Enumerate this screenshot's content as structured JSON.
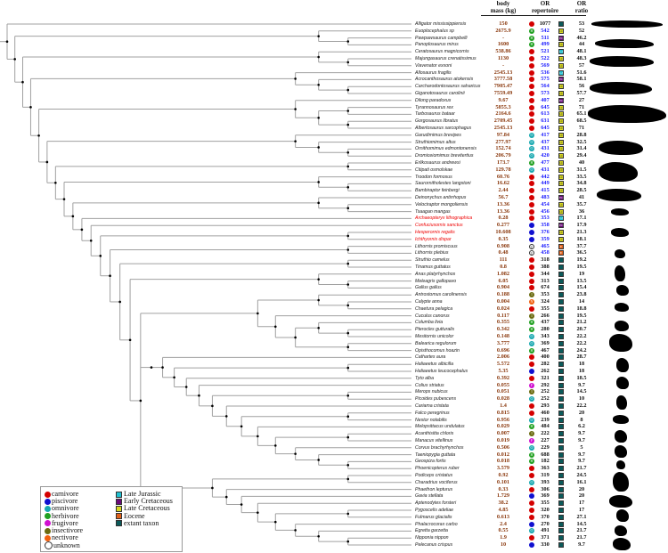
{
  "headers": {
    "body_mass": [
      "body",
      "mass (kg)"
    ],
    "or_repertoire": [
      "OR",
      "repertoire"
    ],
    "or_ratio": [
      "OR",
      "ratio"
    ]
  },
  "colors": {
    "mass_text": "#8b3a0f",
    "fossil_repertoire_text": "#1a1aff",
    "extant_repertoire_text": "#111111",
    "bird_fossil_name": "#ee0000",
    "tree_line": "#a0a0a0"
  },
  "diet_legend": [
    {
      "key": "carnivore",
      "label": "carnivore",
      "color": "#d40000",
      "glyph": ""
    },
    {
      "key": "piscivore",
      "label": "piscivore",
      "color": "#1010d0",
      "glyph": ""
    },
    {
      "key": "omnivore",
      "label": "omnivore",
      "color": "#18a8b0",
      "glyph": "O"
    },
    {
      "key": "herbivore",
      "label": "herbivore",
      "color": "#20a020",
      "glyph": "H"
    },
    {
      "key": "frugivore",
      "label": "frugivore",
      "color": "#d010d0",
      "glyph": "F"
    },
    {
      "key": "insectivore",
      "label": "insectivore",
      "color": "#6b6b10",
      "glyph": "I"
    },
    {
      "key": "nectivore",
      "label": "nectivore",
      "color": "#f06010",
      "glyph": "N"
    },
    {
      "key": "unknown",
      "label": "unknown",
      "color": "#ffffff",
      "glyph": "U"
    }
  ],
  "era_legend": [
    {
      "key": "LJ",
      "label": "Late Jurassic",
      "color": "#20c0d0"
    },
    {
      "key": "EC",
      "label": "Early Cretaceous",
      "color": "#6a0a7a"
    },
    {
      "key": "LC",
      "label": "Late Cretaceous",
      "color": "#d8d820"
    },
    {
      "key": "E",
      "label": "Eocene",
      "color": "#e0601a"
    },
    {
      "key": "X",
      "label": "extant taxon",
      "color": "#0b5a5a"
    }
  ],
  "taxa": [
    {
      "name": "Alligator mississippiensis",
      "mass": "150",
      "diet": "carnivore",
      "rep": "1077",
      "fossil": false,
      "era": "X",
      "ratio": "53",
      "red": false
    },
    {
      "name": "Euoplocephalus sp",
      "mass": "2675.9",
      "diet": "herbivore",
      "rep": "542",
      "fossil": true,
      "era": "LC",
      "ratio": "52",
      "red": false
    },
    {
      "name": "Pawpawsaurus campbelli",
      "mass": "-",
      "diet": "herbivore",
      "rep": "511",
      "fossil": true,
      "era": "EC",
      "ratio": "46.2",
      "red": false
    },
    {
      "name": "Panoplosaurus mirus",
      "mass": "1600",
      "diet": "herbivore",
      "rep": "499",
      "fossil": true,
      "era": "LC",
      "ratio": "44",
      "red": false
    },
    {
      "name": "Ceratosaurus magnicornis",
      "mass": "538.86",
      "diet": "carnivore",
      "rep": "521",
      "fossil": true,
      "era": "LJ",
      "ratio": "48.1",
      "red": false
    },
    {
      "name": "Majungasaurus crenatissimus",
      "mass": "1130",
      "diet": "carnivore",
      "rep": "522",
      "fossil": true,
      "era": "LC",
      "ratio": "48.3",
      "red": false
    },
    {
      "name": "Viavenator exxoni",
      "mass": "-",
      "diet": "carnivore",
      "rep": "569",
      "fossil": true,
      "era": "LC",
      "ratio": "57",
      "red": false
    },
    {
      "name": "Allosaurus fragilis",
      "mass": "2545.13",
      "diet": "carnivore",
      "rep": "536",
      "fossil": true,
      "era": "LJ",
      "ratio": "51.6",
      "red": false
    },
    {
      "name": "Acrocanthosaurus atokensis",
      "mass": "3777.58",
      "diet": "carnivore",
      "rep": "575",
      "fossil": true,
      "era": "EC",
      "ratio": "58.1",
      "red": false
    },
    {
      "name": "Carcharodontosaurus saharicus",
      "mass": "7905.47",
      "diet": "carnivore",
      "rep": "564",
      "fossil": true,
      "era": "LC",
      "ratio": "56",
      "red": false
    },
    {
      "name": "Giganotosaurus carolinii",
      "mass": "7559.49",
      "diet": "carnivore",
      "rep": "573",
      "fossil": true,
      "era": "LC",
      "ratio": "57.7",
      "red": false
    },
    {
      "name": "Dilong paradoxus",
      "mass": "9.67",
      "diet": "carnivore",
      "rep": "407",
      "fossil": true,
      "era": "EC",
      "ratio": "27",
      "red": false
    },
    {
      "name": "Tyrannosaurus rex",
      "mass": "5855.3",
      "diet": "carnivore",
      "rep": "645",
      "fossil": true,
      "era": "LC",
      "ratio": "71",
      "red": false
    },
    {
      "name": "Tarbosaurus bataar",
      "mass": "2164.6",
      "diet": "carnivore",
      "rep": "613",
      "fossil": true,
      "era": "LC",
      "ratio": "65.1",
      "red": false
    },
    {
      "name": "Gorgosaurus libratus",
      "mass": "2709.45",
      "diet": "carnivore",
      "rep": "631",
      "fossil": true,
      "era": "LC",
      "ratio": "68.5",
      "red": false
    },
    {
      "name": "Albertosaurus sarcophagus",
      "mass": "2545.13",
      "diet": "carnivore",
      "rep": "645",
      "fossil": true,
      "era": "LC",
      "ratio": "71",
      "red": false
    },
    {
      "name": "Garudimimus brevipes",
      "mass": "97.84",
      "diet": "omnivore",
      "rep": "417",
      "fossil": true,
      "era": "LC",
      "ratio": "28.8",
      "red": false
    },
    {
      "name": "Struthiomimus altus",
      "mass": "277.97",
      "diet": "omnivore",
      "rep": "437",
      "fossil": true,
      "era": "LC",
      "ratio": "32.5",
      "red": false
    },
    {
      "name": "Ornithomimus edmontonensis",
      "mass": "152.74",
      "diet": "omnivore",
      "rep": "431",
      "fossil": true,
      "era": "LC",
      "ratio": "31.4",
      "red": false
    },
    {
      "name": "Dromiceiomimus brevitertius",
      "mass": "206.79",
      "diet": "omnivore",
      "rep": "420",
      "fossil": true,
      "era": "LC",
      "ratio": "29.4",
      "red": false
    },
    {
      "name": "Erlikosaurus andrewsi",
      "mass": "173.7",
      "diet": "herbivore",
      "rep": "477",
      "fossil": true,
      "era": "LC",
      "ratio": "40",
      "red": false
    },
    {
      "name": "Citipati osmolskae",
      "mass": "129.78",
      "diet": "omnivore",
      "rep": "431",
      "fossil": true,
      "era": "LC",
      "ratio": "31.5",
      "red": false
    },
    {
      "name": "Troodon formosus",
      "mass": "60.76",
      "diet": "carnivore",
      "rep": "442",
      "fossil": true,
      "era": "LC",
      "ratio": "33.5",
      "red": false
    },
    {
      "name": "Saurornitholestes langstoni",
      "mass": "16.62",
      "diet": "carnivore",
      "rep": "449",
      "fossil": true,
      "era": "LC",
      "ratio": "34.8",
      "red": false
    },
    {
      "name": "Bambiraptor feinbergi",
      "mass": "2.44",
      "diet": "carnivore",
      "rep": "415",
      "fossil": true,
      "era": "LC",
      "ratio": "28.5",
      "red": false
    },
    {
      "name": "Deinonychus antirrhopus",
      "mass": "56.7",
      "diet": "carnivore",
      "rep": "483",
      "fossil": true,
      "era": "EC",
      "ratio": "41",
      "red": false
    },
    {
      "name": "Velociraptor mongoliensis",
      "mass": "13.36",
      "diet": "carnivore",
      "rep": "454",
      "fossil": true,
      "era": "LC",
      "ratio": "35.7",
      "red": false
    },
    {
      "name": "Tsaagan mangas",
      "mass": "13.36",
      "diet": "carnivore",
      "rep": "456",
      "fossil": true,
      "era": "LC",
      "ratio": "36",
      "red": false
    },
    {
      "name": "Archaeopteryx lithographica",
      "mass": "0.28",
      "diet": "carnivore",
      "rep": "353",
      "fossil": true,
      "era": "LJ",
      "ratio": "17.1",
      "red": true
    },
    {
      "name": "Confuciusornis sanctus",
      "mass": "0.277",
      "diet": "piscivore",
      "rep": "358",
      "fossil": true,
      "era": "EC",
      "ratio": "17.9",
      "red": true
    },
    {
      "name": "Hesperornis regalis",
      "mass": "10.608",
      "diet": "piscivore",
      "rep": "376",
      "fossil": true,
      "era": "LC",
      "ratio": "21.3",
      "red": true
    },
    {
      "name": "Ichthyornis dispar",
      "mass": "0.35",
      "diet": "piscivore",
      "rep": "359",
      "fossil": true,
      "era": "LC",
      "ratio": "18.1",
      "red": true
    },
    {
      "name": "Lithornis promiscuus",
      "mass": "0.908",
      "diet": "unknown",
      "rep": "465",
      "fossil": true,
      "era": "E",
      "ratio": "37.7",
      "red": false
    },
    {
      "name": "Lithornis plebius",
      "mass": "0.48",
      "diet": "unknown",
      "rep": "458",
      "fossil": true,
      "era": "E",
      "ratio": "36.5",
      "red": false
    },
    {
      "name": "Struthio camelus",
      "mass": "111",
      "diet": "carnivore",
      "rep": "318",
      "fossil": false,
      "era": "X",
      "ratio": "19.2",
      "red": false
    },
    {
      "name": "Tinamus guttatus",
      "mass": "0.8",
      "diet": "carnivore",
      "rep": "388",
      "fossil": false,
      "era": "X",
      "ratio": "19.5",
      "red": false
    },
    {
      "name": "Anas platyrhynchos",
      "mass": "1.082",
      "diet": "carnivore",
      "rep": "344",
      "fossil": false,
      "era": "X",
      "ratio": "19",
      "red": false
    },
    {
      "name": "Meleagris gallopavo",
      "mass": "6.05",
      "diet": "carnivore",
      "rep": "313",
      "fossil": false,
      "era": "X",
      "ratio": "13.5",
      "red": false
    },
    {
      "name": "Gallus gallus",
      "mass": "0.904",
      "diet": "carnivore",
      "rep": "674",
      "fossil": false,
      "era": "X",
      "ratio": "15.4",
      "red": false
    },
    {
      "name": "Antrostomus carolinensis",
      "mass": "0.188",
      "diet": "insectivore",
      "rep": "353",
      "fossil": false,
      "era": "X",
      "ratio": "23.8",
      "red": false
    },
    {
      "name": "Calypte anna",
      "mass": "0.004",
      "diet": "nectivore",
      "rep": "324",
      "fossil": false,
      "era": "X",
      "ratio": "14",
      "red": false
    },
    {
      "name": "Chaetura pelagica",
      "mass": "0.024",
      "diet": "carnivore",
      "rep": "355",
      "fossil": false,
      "era": "X",
      "ratio": "18.8",
      "red": false
    },
    {
      "name": "Cuculus canorus",
      "mass": "0.117",
      "diet": "insectivore",
      "rep": "266",
      "fossil": false,
      "era": "X",
      "ratio": "19.5",
      "red": false
    },
    {
      "name": "Columba livia",
      "mass": "0.355",
      "diet": "herbivore",
      "rep": "437",
      "fossil": false,
      "era": "X",
      "ratio": "21.2",
      "red": false
    },
    {
      "name": "Pterocles gutturalis",
      "mass": "0.342",
      "diet": "herbivore",
      "rep": "280",
      "fossil": false,
      "era": "X",
      "ratio": "20.7",
      "red": false
    },
    {
      "name": "Mesitornis unicolor",
      "mass": "0.148",
      "diet": "omnivore",
      "rep": "343",
      "fossil": false,
      "era": "X",
      "ratio": "22.2",
      "red": false
    },
    {
      "name": "Balearica regulorum",
      "mass": "3.777",
      "diet": "omnivore",
      "rep": "369",
      "fossil": false,
      "era": "X",
      "ratio": "22.2",
      "red": false
    },
    {
      "name": "Opisthocomus hoazin",
      "mass": "0.696",
      "diet": "herbivore",
      "rep": "467",
      "fossil": false,
      "era": "X",
      "ratio": "24.2",
      "red": false
    },
    {
      "name": "Cathartes aura",
      "mass": "2.006",
      "diet": "carnivore",
      "rep": "400",
      "fossil": false,
      "era": "X",
      "ratio": "28.7",
      "red": false
    },
    {
      "name": "Haliaeetus albicilla",
      "mass": "5.572",
      "diet": "carnivore",
      "rep": "282",
      "fossil": false,
      "era": "X",
      "ratio": "18",
      "red": false
    },
    {
      "name": "Haliaeetus leucocephalus",
      "mass": "5.35",
      "diet": "piscivore",
      "rep": "262",
      "fossil": false,
      "era": "X",
      "ratio": "18",
      "red": false
    },
    {
      "name": "Tyto alba",
      "mass": "0.392",
      "diet": "carnivore",
      "rep": "321",
      "fossil": false,
      "era": "X",
      "ratio": "18.5",
      "red": false
    },
    {
      "name": "Colius striatus",
      "mass": "0.055",
      "diet": "frugivore",
      "rep": "292",
      "fossil": false,
      "era": "X",
      "ratio": "9.7",
      "red": false
    },
    {
      "name": "Merops nubicus",
      "mass": "0.051",
      "diet": "insectivore",
      "rep": "252",
      "fossil": false,
      "era": "X",
      "ratio": "14.5",
      "red": false
    },
    {
      "name": "Picoides pubescens",
      "mass": "0.028",
      "diet": "omnivore",
      "rep": "252",
      "fossil": false,
      "era": "X",
      "ratio": "10",
      "red": false
    },
    {
      "name": "Cariama cristata",
      "mass": "1.4",
      "diet": "carnivore",
      "rep": "293",
      "fossil": false,
      "era": "X",
      "ratio": "22.2",
      "red": false
    },
    {
      "name": "Falco peregrinus",
      "mass": "0.815",
      "diet": "carnivore",
      "rep": "460",
      "fossil": false,
      "era": "X",
      "ratio": "20",
      "red": false
    },
    {
      "name": "Nestor notabilis",
      "mass": "0.956",
      "diet": "omnivore",
      "rep": "239",
      "fossil": false,
      "era": "X",
      "ratio": "8",
      "red": false
    },
    {
      "name": "Melopsittacus undulatus",
      "mass": "0.029",
      "diet": "herbivore",
      "rep": "484",
      "fossil": false,
      "era": "X",
      "ratio": "6.2",
      "red": false
    },
    {
      "name": "Acanthisitta chloris",
      "mass": "0.007",
      "diet": "insectivore",
      "rep": "222",
      "fossil": false,
      "era": "X",
      "ratio": "9.7",
      "red": false
    },
    {
      "name": "Manacus vitellinus",
      "mass": "0.019",
      "diet": "frugivore",
      "rep": "227",
      "fossil": false,
      "era": "X",
      "ratio": "9.7",
      "red": false
    },
    {
      "name": "Corvus brachyrhynchos",
      "mass": "0.506",
      "diet": "omnivore",
      "rep": "229",
      "fossil": false,
      "era": "X",
      "ratio": "5",
      "red": false
    },
    {
      "name": "Taeniopygia guttata",
      "mass": "0.012",
      "diet": "herbivore",
      "rep": "688",
      "fossil": false,
      "era": "X",
      "ratio": "9.7",
      "red": false
    },
    {
      "name": "Geospiza fortis",
      "mass": "0.018",
      "diet": "herbivore",
      "rep": "182",
      "fossil": false,
      "era": "X",
      "ratio": "9.7",
      "red": false
    },
    {
      "name": "Phoenicopterus ruber",
      "mass": "3.579",
      "diet": "carnivore",
      "rep": "363",
      "fossil": false,
      "era": "X",
      "ratio": "21.7",
      "red": false
    },
    {
      "name": "Podiceps cristatus",
      "mass": "0.92",
      "diet": "carnivore",
      "rep": "319",
      "fossil": false,
      "era": "X",
      "ratio": "24.5",
      "red": false
    },
    {
      "name": "Charadrius vociferus",
      "mass": "0.101",
      "diet": "omnivore",
      "rep": "393",
      "fossil": false,
      "era": "X",
      "ratio": "16.1",
      "red": false
    },
    {
      "name": "Phaethon lepturus",
      "mass": "0.33",
      "diet": "carnivore",
      "rep": "306",
      "fossil": false,
      "era": "X",
      "ratio": "20",
      "red": false
    },
    {
      "name": "Gavia stellata",
      "mass": "1.729",
      "diet": "piscivore",
      "rep": "369",
      "fossil": false,
      "era": "X",
      "ratio": "20",
      "red": false
    },
    {
      "name": "Aptenodytes forsteri",
      "mass": "38.2",
      "diet": "carnivore",
      "rep": "355",
      "fossil": false,
      "era": "X",
      "ratio": "17",
      "red": false
    },
    {
      "name": "Pygoscelis adeliae",
      "mass": "4.85",
      "diet": "carnivore",
      "rep": "320",
      "fossil": false,
      "era": "X",
      "ratio": "17",
      "red": false
    },
    {
      "name": "Fulmarus glacialis",
      "mass": "0.613",
      "diet": "carnivore",
      "rep": "370",
      "fossil": false,
      "era": "X",
      "ratio": "27.1",
      "red": false
    },
    {
      "name": "Phalacrocorax carbo",
      "mass": "2.4",
      "diet": "piscivore",
      "rep": "270",
      "fossil": false,
      "era": "X",
      "ratio": "14.5",
      "red": false
    },
    {
      "name": "Egretta garzetta",
      "mass": "0.55",
      "diet": "omnivore",
      "rep": "491",
      "fossil": false,
      "era": "X",
      "ratio": "21.7",
      "red": false
    },
    {
      "name": "Nipponia nippon",
      "mass": "1.9",
      "diet": "carnivore",
      "rep": "371",
      "fossil": false,
      "era": "X",
      "ratio": "21.7",
      "red": false
    },
    {
      "name": "Pelecanus crispus",
      "mass": "10",
      "diet": "piscivore",
      "rep": "330",
      "fossil": false,
      "era": "X",
      "ratio": "9.7",
      "red": false
    }
  ],
  "tree_newick": "(0,((1,(2,3)),((4,(5,6)),((7,(8,(9,10))),((11,((12,13),(14,15))),((16,(17,(18,19))),((20,21),((22,(23,24)),((25,(26,27)),(28,(29,((30,31),((32,33),((34,35),((36,(37,38)),(((39,(40,41)),(42,((43,(44,45)),(46,47)))),((48,((49,50),(51,(52,((53,54),(55,((56,57),(58,((59,60),(61,(62,(63,64))))))))))))),((65,66),(67,(68,(69,((70,71),(72,(73,(74,75))))))))))))))))))))))))"
}
